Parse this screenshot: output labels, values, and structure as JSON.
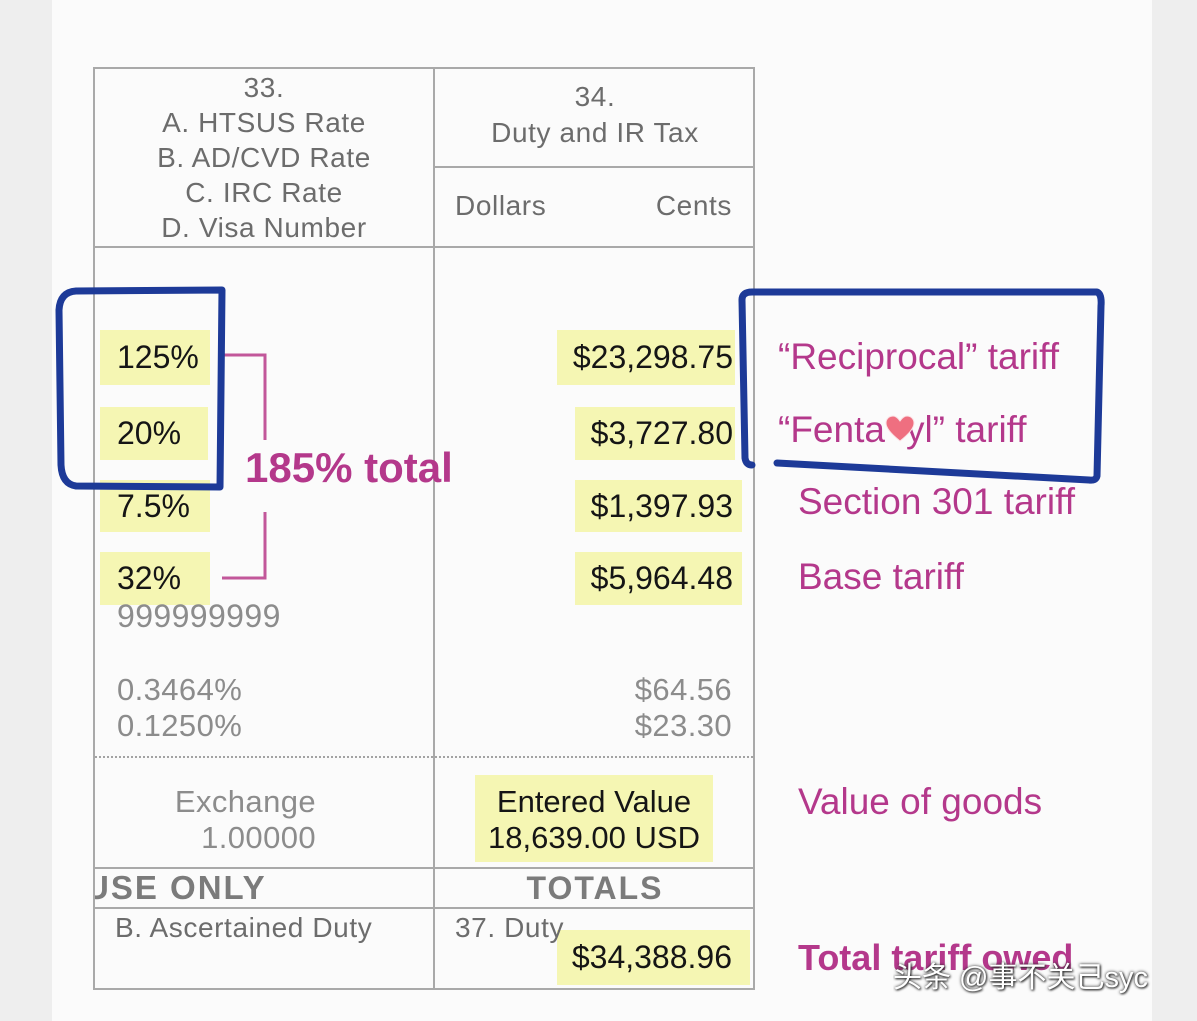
{
  "colors": {
    "highlight": "#f5f6b3",
    "annotation": "#b4388b",
    "bracket": "#c2579a",
    "pen_blue": "#1d3a98",
    "form_text": "#6c6c6c",
    "form_text_light": "#8c8c8c",
    "heart": "#ef6f80"
  },
  "form": {
    "col33": {
      "number": "33.",
      "lines": [
        "A. HTSUS Rate",
        "B. AD/CVD Rate",
        "C. IRC Rate",
        "D. Visa Number"
      ]
    },
    "col34": {
      "number": "34.",
      "title": "Duty and IR Tax",
      "dollars": "Dollars",
      "cents": "Cents"
    },
    "rates": [
      "125%",
      "20%",
      "7.5%",
      "32%"
    ],
    "amounts": [
      "$23,298.75",
      "$3,727.80",
      "$1,397.93",
      "$5,964.48"
    ],
    "visa_number": "999999999",
    "fee_rates": [
      "0.3464%",
      "0.1250%"
    ],
    "fee_amounts": [
      "$64.56",
      "$23.30"
    ],
    "exchange": {
      "label": "Exchange",
      "rate": "1.00000"
    },
    "entered_value": {
      "label": "Entered Value",
      "value": "18,639.00 USD"
    },
    "use_only": "USE ONLY",
    "totals": "TOTALS",
    "ascertained_duty": "B. Ascertained Duty",
    "duty_label": "37. Duty",
    "duty_total": "$34,388.96"
  },
  "annotations": {
    "bracket_total": "185% total",
    "reciprocal": "“Reciprocal” tariff",
    "fentanyl": {
      "before_heart": "“Fenta",
      "after_heart": "yl” tariff",
      "icon": "heart-icon"
    },
    "section_301": "Section 301 tariff",
    "base": "Base tariff",
    "value_of_goods": "Value of goods",
    "total_owed": "Total tariff owed"
  },
  "watermark": "头条 @事不关己syc"
}
